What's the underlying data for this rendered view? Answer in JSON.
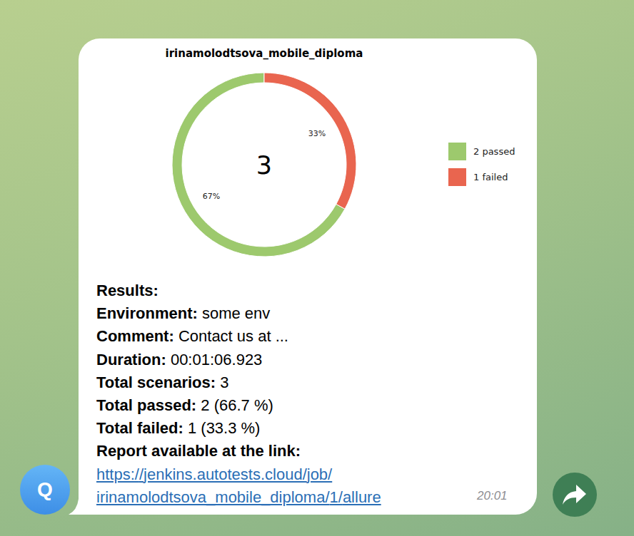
{
  "chart_data": {
    "type": "pie",
    "donut": true,
    "title": "irinamolodtsova_mobile_diploma",
    "categories": [
      "2 passed",
      "1 failed"
    ],
    "values": [
      67,
      33
    ],
    "value_labels": [
      "67%",
      "33%"
    ],
    "colors": [
      "#9dc96d",
      "#e9654f"
    ],
    "data_labels": true,
    "legend": "right",
    "annotations": [
      "3"
    ]
  },
  "message": {
    "lines": [
      {
        "label": "Results:"
      },
      {
        "label": "Environment:",
        "value": "some env"
      },
      {
        "label": "Comment:",
        "value": "Contact us at ..."
      },
      {
        "label": "Duration:",
        "value": "00:01:06.923"
      },
      {
        "label": "Total scenarios:",
        "value": "3"
      },
      {
        "label": "Total passed:",
        "value": "2 (66.7 %)"
      },
      {
        "label": "Total failed:",
        "value": "1 (33.3 %)"
      },
      {
        "label": "Report available at the link:"
      }
    ],
    "link": "https://jenkins.autotests.cloud/job/irinamolodtsova_mobile_diploma/1/allure",
    "time": "20:01",
    "avatar": "Q"
  }
}
